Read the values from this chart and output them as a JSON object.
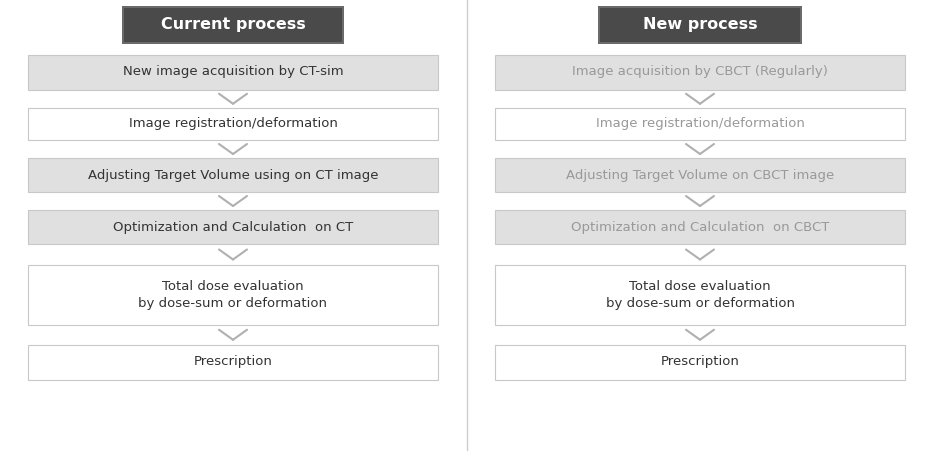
{
  "bg_color": "#ffffff",
  "title_bg": "#4a4a4a",
  "title_text_color": "#ffffff",
  "box_edge_color": "#c8c8c8",
  "arrow_color": "#b0b0b0",
  "divider_color": "#cccccc",
  "left_title": "Current process",
  "right_title": "New process",
  "left_steps": [
    "New image acquisition by CT-sim",
    "Image registration/deformation",
    "Adjusting Target Volume using on CT image",
    "Optimization and Calculation  on CT",
    "Total dose evaluation\nby dose-sum or deformation",
    "Prescription"
  ],
  "right_steps": [
    "Image acquisition by CBCT (Regularly)",
    "Image registration/deformation",
    "Adjusting Target Volume on CBCT image",
    "Optimization and Calculation  on CBCT",
    "Total dose evaluation\nby dose-sum or deformation",
    "Prescription"
  ],
  "left_step_bg": [
    "#e0e0e0",
    "#ffffff",
    "#e0e0e0",
    "#e0e0e0",
    "#ffffff",
    "#ffffff"
  ],
  "right_step_bg": [
    "#e0e0e0",
    "#ffffff",
    "#e0e0e0",
    "#e0e0e0",
    "#ffffff",
    "#ffffff"
  ],
  "left_text_colors": [
    "#333333",
    "#333333",
    "#333333",
    "#333333",
    "#333333",
    "#333333"
  ],
  "right_text_colors": [
    "#999999",
    "#999999",
    "#999999",
    "#999999",
    "#333333",
    "#333333"
  ],
  "fig_w": 9.34,
  "fig_h": 4.51,
  "dpi": 100
}
